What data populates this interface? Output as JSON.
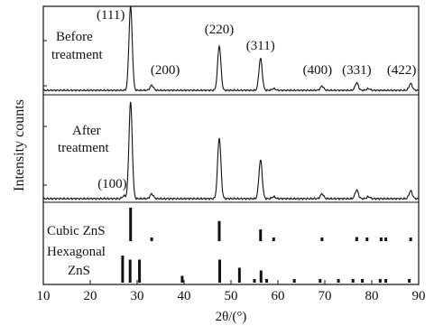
{
  "chart_data": {
    "type": "line",
    "xlabel": "2θ/(°)",
    "ylabel": "Intensity counts",
    "xlim": [
      10,
      90
    ],
    "x_ticks": [
      10,
      20,
      30,
      40,
      50,
      60,
      70,
      80,
      90
    ],
    "grid": false,
    "panels": [
      {
        "id": "before",
        "label_lines": [
          "Before",
          "treatment"
        ],
        "peaks": [
          {
            "x": 28.6,
            "y": 1.0,
            "label": "(111)"
          },
          {
            "x": 33.1,
            "y": 0.06,
            "label": "(200)"
          },
          {
            "x": 47.5,
            "y": 0.53,
            "label": "(220)"
          },
          {
            "x": 56.3,
            "y": 0.38,
            "label": "(311)"
          },
          {
            "x": 59.1,
            "y": 0.02,
            "label": ""
          },
          {
            "x": 69.4,
            "y": 0.05,
            "label": "(400)"
          },
          {
            "x": 76.8,
            "y": 0.09,
            "label": "(331)"
          },
          {
            "x": 79.3,
            "y": 0.02,
            "label": ""
          },
          {
            "x": 88.3,
            "y": 0.08,
            "label": "(422)"
          }
        ]
      },
      {
        "id": "after",
        "label_lines": [
          "After",
          "treatment"
        ],
        "peaks": [
          {
            "x": 27.2,
            "y": 0.03,
            "label": "(100)"
          },
          {
            "x": 28.6,
            "y": 1.0,
            "label": ""
          },
          {
            "x": 33.1,
            "y": 0.05,
            "label": ""
          },
          {
            "x": 47.5,
            "y": 0.63,
            "label": ""
          },
          {
            "x": 56.3,
            "y": 0.4,
            "label": ""
          },
          {
            "x": 59.1,
            "y": 0.02,
            "label": ""
          },
          {
            "x": 69.4,
            "y": 0.05,
            "label": ""
          },
          {
            "x": 76.8,
            "y": 0.09,
            "label": ""
          },
          {
            "x": 79.3,
            "y": 0.02,
            "label": ""
          },
          {
            "x": 88.3,
            "y": 0.08,
            "label": ""
          }
        ]
      }
    ],
    "references": [
      {
        "id": "cubic",
        "label": "Cubic ZnS",
        "lines": [
          {
            "x": 28.6,
            "y": 1.0
          },
          {
            "x": 33.1,
            "y": 0.1
          },
          {
            "x": 47.5,
            "y": 0.6
          },
          {
            "x": 56.3,
            "y": 0.35
          },
          {
            "x": 59.1,
            "y": 0.1
          },
          {
            "x": 69.4,
            "y": 0.1
          },
          {
            "x": 76.8,
            "y": 0.12
          },
          {
            "x": 79.0,
            "y": 0.08
          },
          {
            "x": 82.0,
            "y": 0.1
          },
          {
            "x": 83.0,
            "y": 0.1
          },
          {
            "x": 88.3,
            "y": 0.1
          }
        ]
      },
      {
        "id": "hexagonal",
        "label_lines": [
          "Hexagonal",
          "ZnS"
        ],
        "lines": [
          {
            "x": 26.9,
            "y": 1.0
          },
          {
            "x": 28.5,
            "y": 0.85
          },
          {
            "x": 30.5,
            "y": 0.85
          },
          {
            "x": 39.6,
            "y": 0.25
          },
          {
            "x": 47.6,
            "y": 0.85
          },
          {
            "x": 51.8,
            "y": 0.55
          },
          {
            "x": 55.0,
            "y": 0.12
          },
          {
            "x": 56.4,
            "y": 0.45
          },
          {
            "x": 57.6,
            "y": 0.12
          },
          {
            "x": 63.5,
            "y": 0.08
          },
          {
            "x": 69.0,
            "y": 0.08
          },
          {
            "x": 72.9,
            "y": 0.1
          },
          {
            "x": 76.0,
            "y": 0.1
          },
          {
            "x": 78.0,
            "y": 0.1
          },
          {
            "x": 81.8,
            "y": 0.1
          },
          {
            "x": 83.0,
            "y": 0.1
          },
          {
            "x": 88.0,
            "y": 0.1
          }
        ]
      }
    ]
  }
}
